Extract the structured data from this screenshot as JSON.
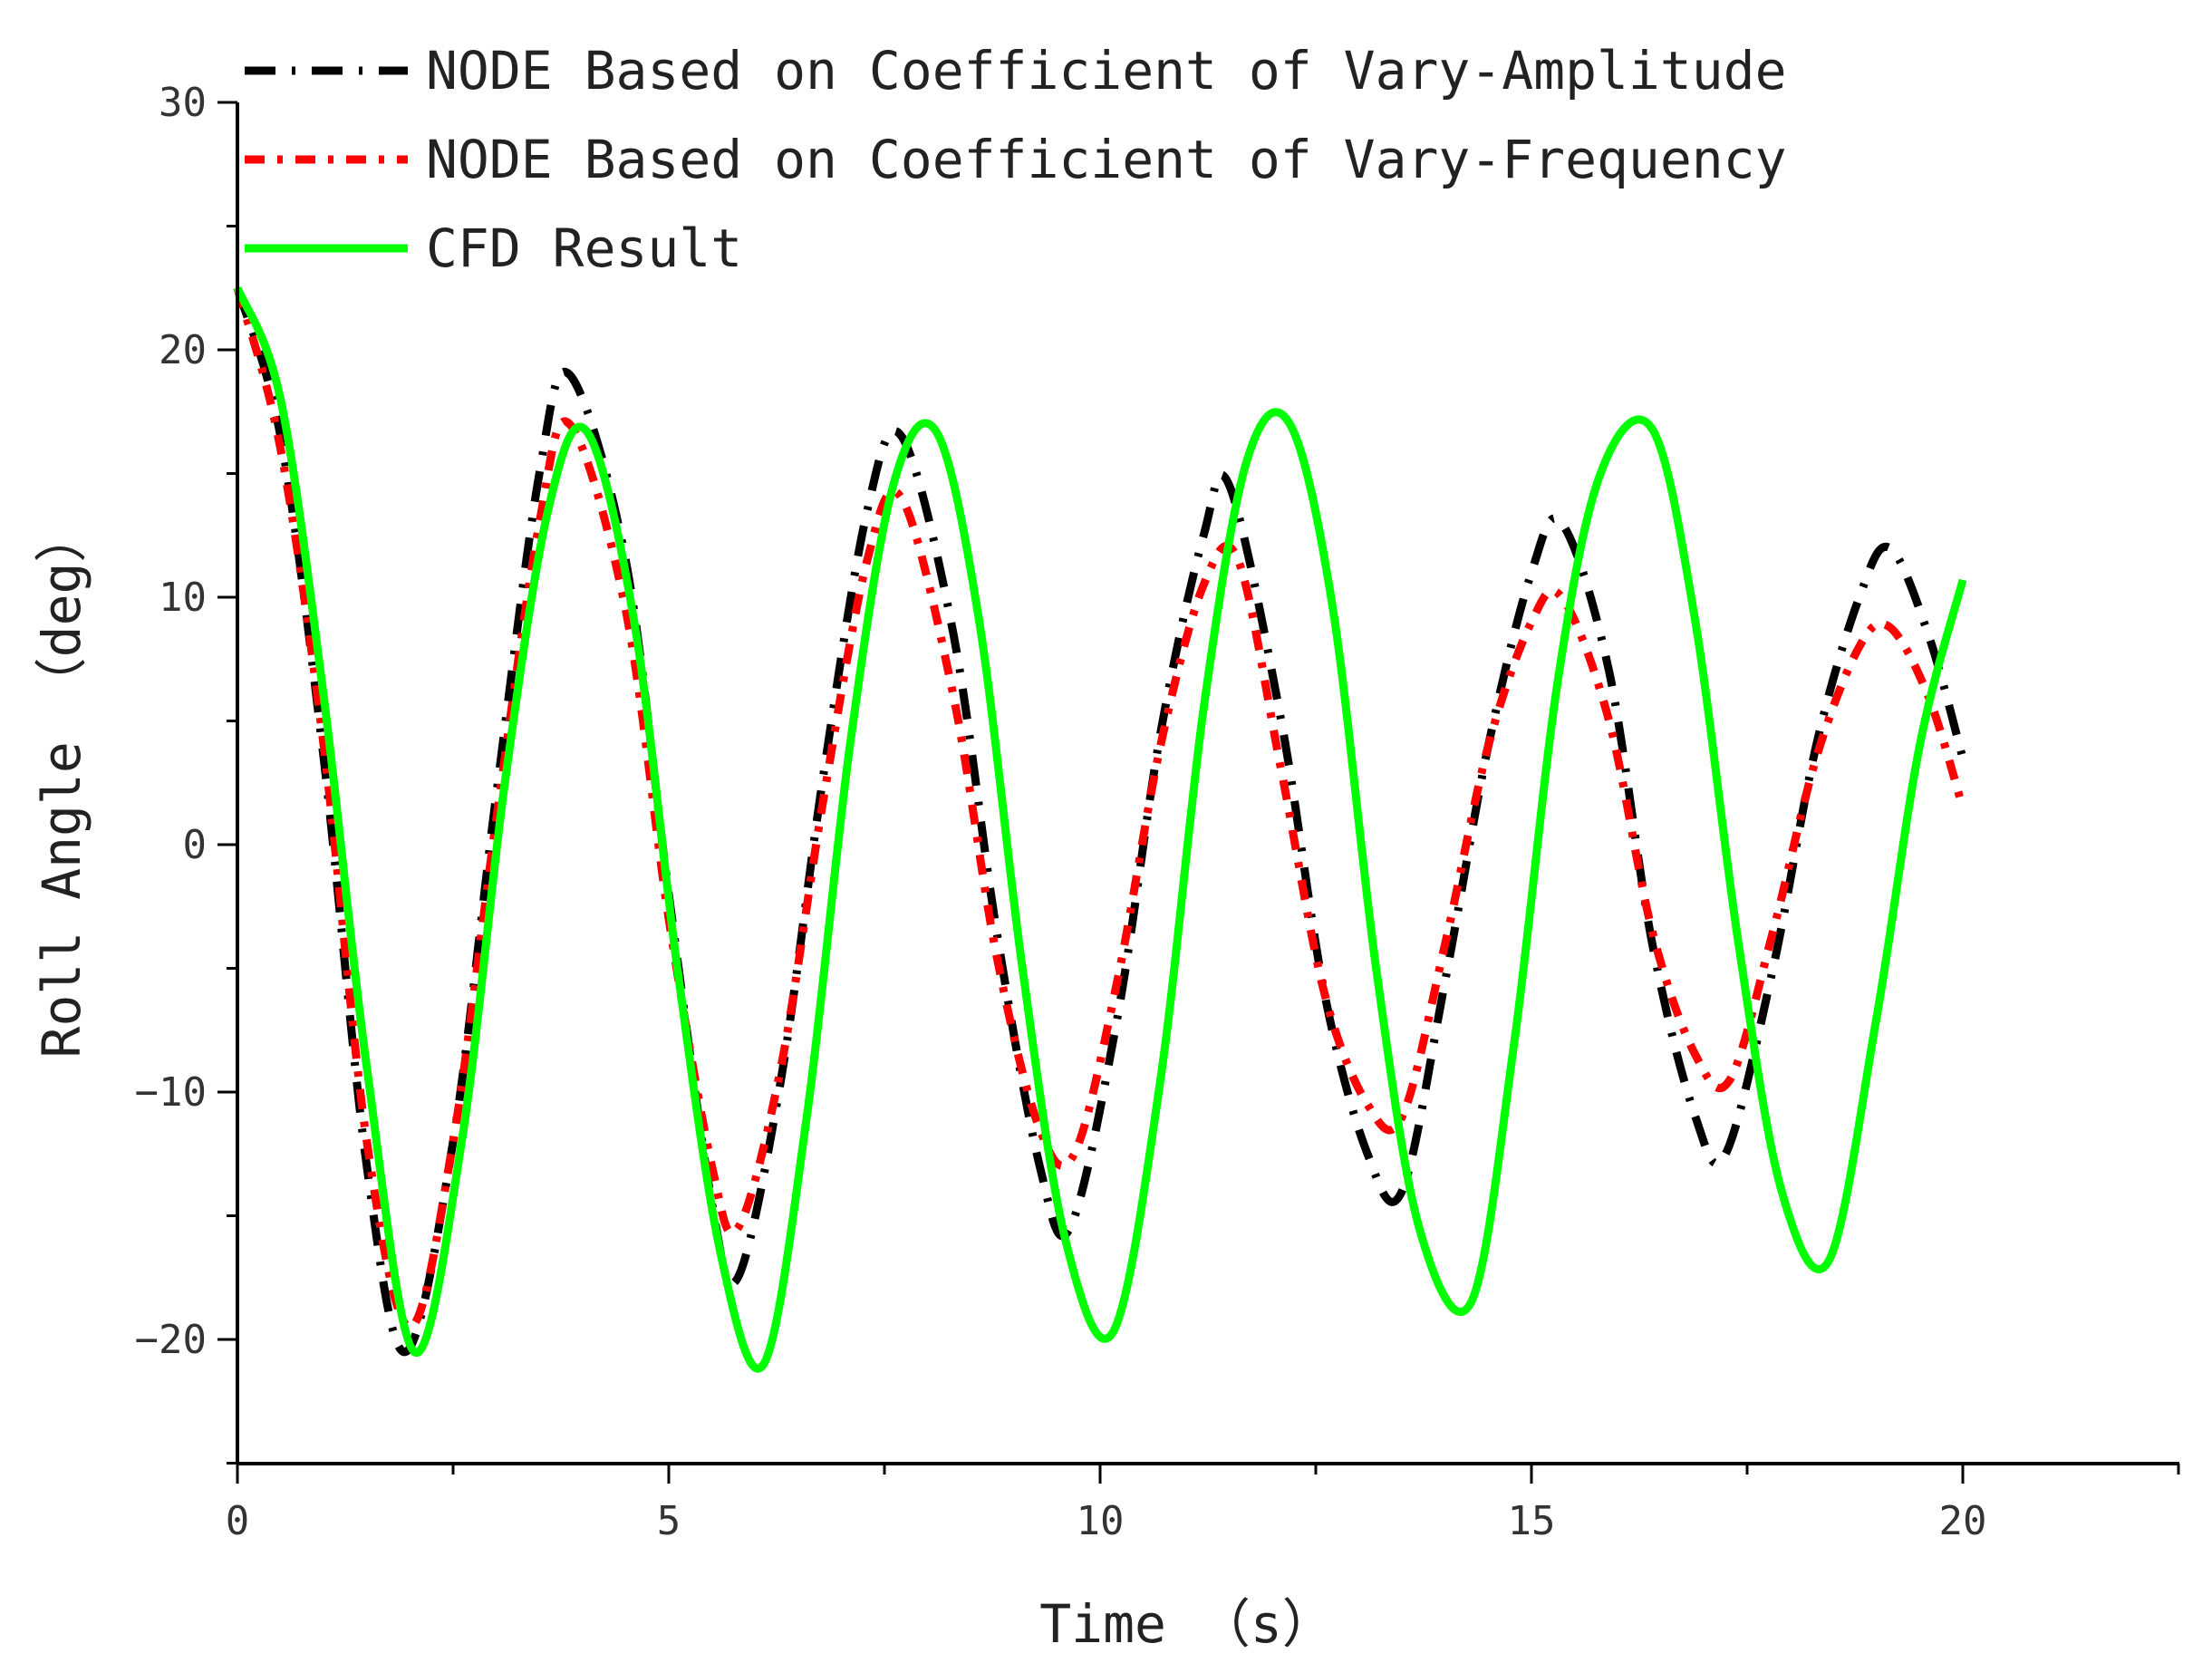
{
  "chart_data": {
    "type": "line",
    "title": "",
    "xlabel": "Time （s）",
    "ylabel": "Roll Angle （deg）",
    "xlim": [
      0,
      22.5
    ],
    "ylim": [
      -25,
      30
    ],
    "x_ticks": [
      0,
      5,
      10,
      15,
      20
    ],
    "x_tick_labels": [
      "0",
      "5",
      "10",
      "15",
      "20"
    ],
    "y_ticks": [
      -20,
      -10,
      0,
      10,
      20,
      30
    ],
    "y_tick_labels": [
      "−20",
      "−10",
      "0",
      "10",
      "20",
      "30"
    ],
    "grid": false,
    "legend_position": "top-left",
    "series": [
      {
        "name": "NODE Based on Coefficient of Vary-Amplitude",
        "color": "#000000",
        "style": "dash-dot",
        "x": [
          0,
          0.5,
          1.0,
          1.5,
          1.95,
          2.5,
          3.0,
          3.5,
          3.85,
          4.5,
          5.0,
          5.5,
          5.8,
          6.3,
          6.8,
          7.3,
          7.7,
          8.3,
          8.8,
          9.3,
          9.65,
          10.2,
          10.7,
          11.2,
          11.5,
          12.1,
          12.6,
          13.1,
          13.5,
          14.0,
          14.5,
          15.0,
          15.35,
          15.9,
          16.4,
          16.9,
          17.25,
          17.8,
          18.3,
          18.8,
          19.15,
          19.6,
          20.0
        ],
        "y": [
          22.5,
          16.5,
          3.5,
          -13.0,
          -20.5,
          -12.0,
          2.0,
          15.0,
          19.0,
          11.5,
          -2.0,
          -14.5,
          -17.5,
          -9.5,
          3.0,
          13.5,
          16.5,
          8.5,
          -3.5,
          -13.0,
          -15.5,
          -7.0,
          4.5,
          12.5,
          14.5,
          5.0,
          -6.0,
          -12.5,
          -14.0,
          -5.5,
          4.0,
          11.0,
          13.0,
          7.0,
          -4.0,
          -11.0,
          -12.5,
          -5.0,
          4.0,
          10.0,
          12.0,
          8.5,
          3.5
        ]
      },
      {
        "name": "NODE Based on Coefficient of Vary-Frequency",
        "color": "#ff0000",
        "style": "dash-dot",
        "x": [
          0,
          0.5,
          1.0,
          1.5,
          2.0,
          2.5,
          3.0,
          3.5,
          3.85,
          4.5,
          5.0,
          5.5,
          5.8,
          6.3,
          6.8,
          7.3,
          7.7,
          8.3,
          8.8,
          9.3,
          9.7,
          10.2,
          10.7,
          11.2,
          11.6,
          12.1,
          12.6,
          13.1,
          13.5,
          14.0,
          14.5,
          15.0,
          15.35,
          15.9,
          16.4,
          16.9,
          17.3,
          17.8,
          18.3,
          18.8,
          19.15,
          19.6,
          20.0
        ],
        "y": [
          22.5,
          16.0,
          4.0,
          -12.0,
          -19.5,
          -12.0,
          1.0,
          13.0,
          17.0,
          9.5,
          -3.0,
          -13.0,
          -15.5,
          -9.0,
          2.0,
          11.5,
          14.0,
          6.0,
          -4.5,
          -11.5,
          -12.5,
          -5.5,
          4.0,
          10.5,
          11.5,
          3.0,
          -6.0,
          -10.5,
          -11.0,
          -4.0,
          4.0,
          9.0,
          10.0,
          5.0,
          -3.5,
          -8.5,
          -9.5,
          -3.5,
          3.5,
          8.0,
          8.8,
          6.0,
          1.5
        ]
      },
      {
        "name": "CFD Result",
        "color": "#00ff00",
        "style": "solid",
        "x": [
          0,
          0.5,
          1.0,
          1.5,
          2.05,
          2.6,
          3.1,
          3.6,
          4.05,
          4.6,
          5.1,
          5.6,
          6.1,
          6.6,
          7.1,
          7.6,
          8.1,
          8.6,
          9.1,
          9.6,
          10.15,
          10.7,
          11.2,
          11.7,
          12.2,
          12.7,
          13.2,
          13.7,
          14.3,
          14.8,
          15.3,
          15.8,
          16.4,
          16.9,
          17.4,
          17.9,
          18.45,
          19.0,
          19.5,
          20.0
        ],
        "y": [
          22.5,
          18.0,
          6.0,
          -9.0,
          -20.5,
          -12.0,
          2.5,
          13.5,
          16.7,
          9.0,
          -5.0,
          -16.5,
          -21.0,
          -11.0,
          4.0,
          14.5,
          16.7,
          9.0,
          -5.0,
          -16.0,
          -19.7,
          -9.5,
          5.5,
          15.5,
          17.0,
          9.5,
          -5.0,
          -15.5,
          -18.5,
          -8.0,
          6.5,
          15.0,
          16.8,
          9.0,
          -4.0,
          -14.0,
          -16.8,
          -7.0,
          4.0,
          10.7
        ]
      }
    ]
  }
}
